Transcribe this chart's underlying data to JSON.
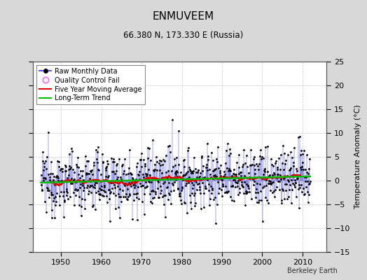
{
  "title": "ENMUVEEM",
  "subtitle": "66.380 N, 173.330 E (Russia)",
  "ylabel": "Temperature Anomaly (°C)",
  "credit": "Berkeley Earth",
  "xlim": [
    1943,
    2016
  ],
  "ylim": [
    -15,
    25
  ],
  "yticks": [
    -15,
    -10,
    -5,
    0,
    5,
    10,
    15,
    20,
    25
  ],
  "xticks": [
    1950,
    1960,
    1970,
    1980,
    1990,
    2000,
    2010
  ],
  "bg_color": "#d8d8d8",
  "plot_bg_color": "#ffffff",
  "raw_line_color": "#3333cc",
  "raw_dot_color": "#000000",
  "qc_color": "#ff66ff",
  "moving_avg_color": "#dd0000",
  "trend_color": "#00bb00",
  "seed": 12345,
  "n_years": 67,
  "start_year": 1945
}
